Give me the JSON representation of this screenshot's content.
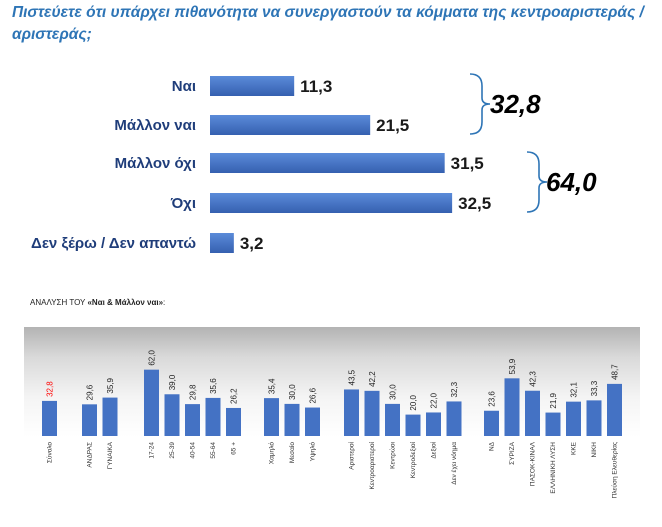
{
  "title": "Πιστεύετε ότι υπάρχει πιθανότητα να συνεργαστούν τα κόμματα της κεντροαριστεράς / αριστεράς;",
  "chart_data": [
    {
      "type": "bar",
      "orientation": "horizontal",
      "categories": [
        "Ναι",
        "Μάλλον ναι",
        "Μάλλον όχι",
        "Όχι",
        "Δεν ξέρω / Δεν απαντώ"
      ],
      "values": [
        11.3,
        21.5,
        31.5,
        32.5,
        3.2
      ],
      "value_labels": [
        "11,3",
        "21,5",
        "31,5",
        "32,5",
        "3,2"
      ],
      "bar_color": "#4472c4",
      "grid": false,
      "groups": [
        {
          "members": [
            "Ναι",
            "Μάλλον ναι"
          ],
          "total_label": "32,8"
        },
        {
          "members": [
            "Μάλλον όχι",
            "Όχι"
          ],
          "total_label": "64,0"
        }
      ]
    },
    {
      "type": "bar",
      "orientation": "vertical",
      "title_prefix": "ΑΝΑΛΥΣΗ ΤΟΥ ",
      "title_emphasis": "«Ναι & Μάλλον ναι»",
      "title_suffix": ":",
      "ylim": [
        0,
        75
      ],
      "grid": false,
      "bar_color": "#4472c4",
      "highlight_color": "#ff0000",
      "groups": [
        {
          "categories": [
            "Σύνολο"
          ],
          "values": [
            32.8
          ],
          "value_labels": [
            "32,8"
          ],
          "highlight": true
        },
        {
          "categories": [
            "ΑΝΔΡΑΣ",
            "ΓΥΝΑΙΚΑ"
          ],
          "values": [
            29.6,
            35.9
          ],
          "value_labels": [
            "29,6",
            "35,9"
          ]
        },
        {
          "categories": [
            "17-24",
            "25-39",
            "40-54",
            "55-64",
            "65 +"
          ],
          "values": [
            62.0,
            39.0,
            29.8,
            35.6,
            26.2
          ],
          "value_labels": [
            "62,0",
            "39,0",
            "29,8",
            "35,6",
            "26,2"
          ]
        },
        {
          "categories": [
            "Χαμηλό",
            "Μεσαίο",
            "Υψηλό"
          ],
          "values": [
            35.4,
            30.0,
            26.6
          ],
          "value_labels": [
            "35,4",
            "30,0",
            "26,6"
          ]
        },
        {
          "categories": [
            "Αριστεροί",
            "Κεντροαριστεροί",
            "Κεντρώοι",
            "Κεντροδεξιοί",
            "Δεξιοί",
            "Δεν έχει νόημα"
          ],
          "values": [
            43.5,
            42.2,
            30.0,
            20.0,
            22.0,
            32.3
          ],
          "value_labels": [
            "43,5",
            "42,2",
            "30,0",
            "20,0",
            "22,0",
            "32,3"
          ]
        },
        {
          "categories": [
            "ΝΔ",
            "ΣΥΡΙΖΑ",
            "ΠΑΣΟΚ-ΚΙΝΑΛ",
            "ΕΛΛΗΝΙΚΗ ΛΥΣΗ",
            "ΚΚΕ",
            "ΝΙΚΗ",
            "Πλεύση Ελευθερίας"
          ],
          "values": [
            23.6,
            53.9,
            42.3,
            21.9,
            32.1,
            33.3,
            48.7
          ],
          "value_labels": [
            "23,6",
            "53,9",
            "42,3",
            "21,9",
            "32,1",
            "33,3",
            "48,7"
          ]
        }
      ]
    }
  ]
}
